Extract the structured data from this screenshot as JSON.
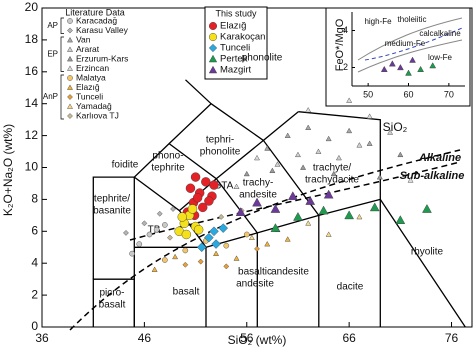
{
  "chart_data": [
    {
      "type": "scatter",
      "xlabel": "SiO₂ (wt%)",
      "ylabel": "K₂O+Na₂O (wt%)",
      "xlim": [
        36,
        78
      ],
      "xticks": [
        36,
        46,
        56,
        66,
        76
      ],
      "ylim": [
        0,
        20
      ],
      "yticks": [
        0,
        2,
        4,
        6,
        8,
        10,
        12,
        14,
        16,
        18,
        20
      ],
      "legend_title": "This study",
      "literature_title": "Literature Data",
      "literature": [
        {
          "label": "AP",
          "series": [
            {
              "name": "Karacadağ",
              "color": "#c9c9c9",
              "marker": "circle",
              "x": [
                45.5,
                46.5,
                47.2,
                44.8,
                48
              ],
              "y": [
                5.2,
                5.8,
                6.1,
                4.6,
                6.4
              ]
            },
            {
              "name": "Karasu Valley",
              "color": "#b4b4b4",
              "marker": "diamond",
              "x": [
                46,
                47.5,
                48.8,
                44.2
              ],
              "y": [
                6.5,
                7.1,
                7.4,
                5.9
              ]
            }
          ]
        },
        {
          "label": "EP",
          "series": [
            {
              "name": "Van",
              "color": "#a8a8a8",
              "marker": "triangle",
              "x": [
                58,
                60,
                62,
                64,
                66,
                68
              ],
              "y": [
                11.2,
                12,
                12.5,
                11.8,
                12.3,
                11.5
              ]
            },
            {
              "name": "Ararat",
              "color": "#cfcfcf",
              "marker": "triangle",
              "x": [
                59,
                61,
                63,
                65,
                67,
                70
              ],
              "y": [
                10.2,
                10.8,
                11,
                10.6,
                11.4,
                12.2
              ]
            },
            {
              "name": "Erzurum-Kars",
              "color": "#9a9a9a",
              "marker": "triangle",
              "x": [
                56,
                58.5,
                61.5,
                64.5,
                69,
                71
              ],
              "y": [
                9.6,
                9.8,
                10,
                9.6,
                9.4,
                10.8
              ]
            },
            {
              "name": "Erzincan",
              "color": "#dcdcdc",
              "marker": "triangle",
              "x": [
                55,
                57,
                62,
                66,
                68,
                72
              ],
              "y": [
                8.8,
                10.6,
                13.6,
                14.2,
                13.2,
                9.2
              ]
            }
          ]
        },
        {
          "label": "AnP",
          "series": [
            {
              "name": "Malatya",
              "color": "#f3c66d",
              "marker": "circle",
              "x": [
                48,
                50,
                52,
                54,
                56
              ],
              "y": [
                4.2,
                4.8,
                5.4,
                5.1,
                5.8
              ]
            },
            {
              "name": "Elazığ",
              "color": "#f2b23a",
              "marker": "triangle",
              "x": [
                47,
                49,
                53,
                55,
                58,
                60
              ],
              "y": [
                3.6,
                4.4,
                4.6,
                4.3,
                5.2,
                5.5
              ]
            },
            {
              "name": "Tunceli",
              "color": "#e89f3a",
              "marker": "diamond",
              "x": [
                50,
                51.5,
                54,
                57
              ],
              "y": [
                3.9,
                4.1,
                3.8,
                4.9
              ]
            },
            {
              "name": "Yamadağ",
              "color": "#f6d98e",
              "marker": "triangle",
              "x": [
                56.5,
                59,
                62,
                64,
                67
              ],
              "y": [
                5.6,
                6.1,
                6.5,
                5.8,
                6.9
              ]
            },
            {
              "name": "Karlıova TJ",
              "color": "#c8b896",
              "marker": "diamond",
              "x": [
                48.5,
                51,
                53.5,
                55.5
              ],
              "y": [
                5.6,
                6.2,
                6.9,
                7.3
              ]
            }
          ]
        }
      ],
      "series": [
        {
          "name": "Elazığ",
          "color": "#e42127",
          "marker": "circle",
          "x": [
            50.2,
            50.8,
            51.4,
            52,
            52.6,
            51,
            51.7,
            50.5,
            52.3,
            51.2,
            50.9,
            52.8
          ],
          "y": [
            7.2,
            7.8,
            8.4,
            9.1,
            8.2,
            9.4,
            7.5,
            8.7,
            7.9,
            8.1,
            7.0,
            8.9
          ]
        },
        {
          "name": "Karakoçan",
          "color": "#f5e11b",
          "marker": "circle",
          "x": [
            49.4,
            49.9,
            50.4,
            51,
            50.1,
            50.7,
            49.7,
            51.3
          ],
          "y": [
            6.0,
            6.5,
            7.0,
            6.3,
            5.8,
            7.4,
            6.9,
            6.1
          ]
        },
        {
          "name": "Tunceli",
          "color": "#2aa9e0",
          "marker": "diamond",
          "x": [
            51.6,
            52.3,
            53,
            53.7,
            52.8
          ],
          "y": [
            5.0,
            5.6,
            5.2,
            6.2,
            6.0
          ]
        },
        {
          "name": "Pertek",
          "color": "#1f9a4f",
          "marker": "triangle",
          "x": [
            58.8,
            61,
            63.5,
            66,
            68.5,
            71,
            73.6
          ],
          "y": [
            6.2,
            6.9,
            7.3,
            7.0,
            7.5,
            6.7,
            7.4
          ]
        },
        {
          "name": "Mazgirt",
          "color": "#6b3a98",
          "marker": "triangle",
          "x": [
            55.4,
            57,
            58.8,
            60.5,
            62.2,
            64
          ],
          "y": [
            7.2,
            7.8,
            7.4,
            8.2,
            7.9,
            8.3
          ]
        }
      ],
      "annotations": [
        [
          "foidite"
        ],
        [
          "phonolite"
        ],
        [
          "tephri-",
          "phonolite"
        ],
        [
          "phono-",
          "tephrite"
        ],
        [
          "tephrite/",
          "basanite"
        ],
        [
          "trachyte/",
          "trachydacite"
        ],
        [
          "trachy-",
          "andesite"
        ],
        [
          "BTA"
        ],
        [
          "TB"
        ],
        [
          "basaltic",
          "andesite"
        ],
        [
          "andesite"
        ],
        [
          "dacite"
        ],
        [
          "rhyolite"
        ],
        [
          "basalt"
        ],
        [
          "picro-",
          "basalt"
        ],
        [
          "Alkaline"
        ],
        [
          "Sub-alkaline"
        ]
      ]
    },
    {
      "type": "scatter",
      "xlabel": "SiO₂",
      "ylabel": "FeO*/MgO",
      "xlim": [
        46,
        74
      ],
      "xticks": [
        50,
        60,
        70
      ],
      "ylim": [
        1,
        5
      ],
      "yticks": [
        2,
        4
      ],
      "annotations": [
        [
          "high-Fe"
        ],
        [
          "tholeiitic"
        ],
        [
          "calcalkaline"
        ],
        [
          "medium-Fe"
        ],
        [
          "low-Fe"
        ]
      ],
      "series": [
        {
          "color": "#6b3a98",
          "marker": "triangle",
          "x": [
            54,
            56,
            58,
            61
          ],
          "y": [
            1.9,
            2.2,
            2.0,
            2.4
          ]
        },
        {
          "color": "#1f9a4f",
          "marker": "triangle",
          "x": [
            60,
            63,
            66
          ],
          "y": [
            1.7,
            1.9,
            2.1
          ]
        }
      ]
    }
  ]
}
